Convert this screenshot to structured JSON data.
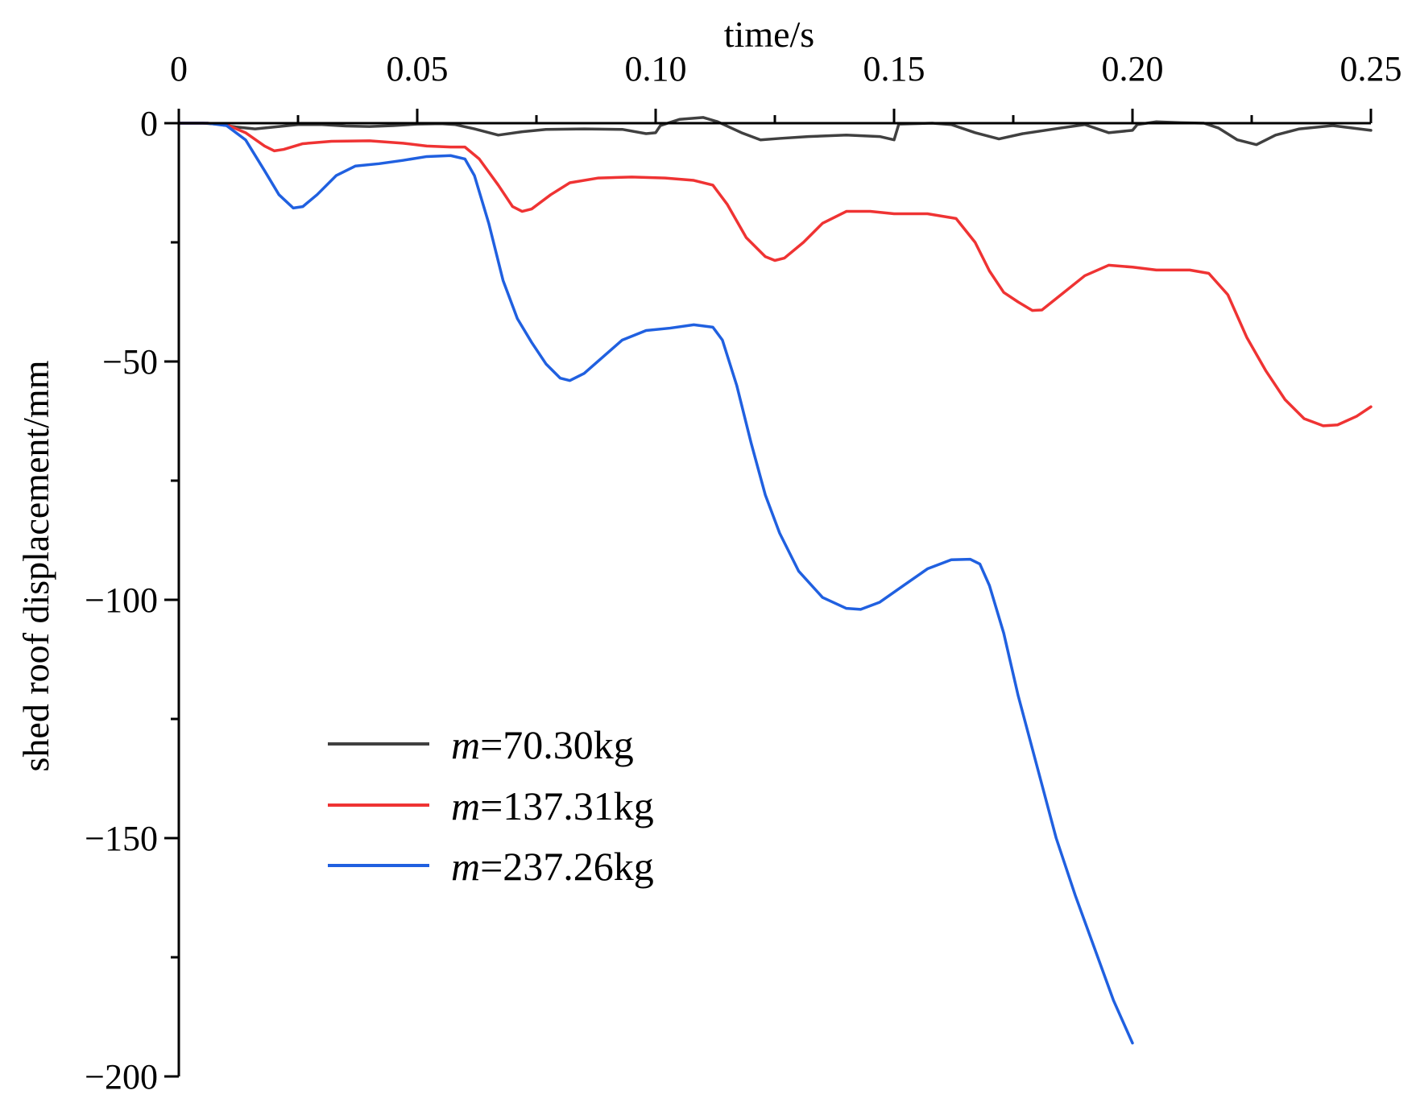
{
  "chart_data": {
    "type": "line",
    "title": "",
    "xlabel": "time/s",
    "ylabel": "shed roof displacement/mm",
    "xlim": [
      0,
      0.25
    ],
    "ylim": [
      -200,
      0
    ],
    "x_axis_position": "top",
    "grid": false,
    "legend_position": "lower-left",
    "x_ticks": [
      {
        "value": 0,
        "label": "0"
      },
      {
        "value": 0.05,
        "label": "0.05"
      },
      {
        "value": 0.1,
        "label": "0.10"
      },
      {
        "value": 0.15,
        "label": "0.15"
      },
      {
        "value": 0.2,
        "label": "0.20"
      },
      {
        "value": 0.25,
        "label": "0.25"
      }
    ],
    "x_minor_ticks": [
      0.025,
      0.075,
      0.125,
      0.175,
      0.225
    ],
    "y_ticks": [
      {
        "value": 0,
        "label": "0"
      },
      {
        "value": -50,
        "label": "−50"
      },
      {
        "value": -100,
        "label": "−100"
      },
      {
        "value": -150,
        "label": "−150"
      },
      {
        "value": -200,
        "label": "−200"
      }
    ],
    "y_minor_ticks": [
      -25,
      -75,
      -125,
      -175
    ],
    "series": [
      {
        "name_var": "m",
        "name_rest": "=70.30kg",
        "color": "#404040",
        "points": [
          [
            0,
            0
          ],
          [
            0.005,
            0
          ],
          [
            0.008,
            -0.2
          ],
          [
            0.012,
            -0.8
          ],
          [
            0.016,
            -1.2
          ],
          [
            0.02,
            -0.8
          ],
          [
            0.025,
            -0.3
          ],
          [
            0.03,
            -0.3
          ],
          [
            0.035,
            -0.6
          ],
          [
            0.04,
            -0.7
          ],
          [
            0.045,
            -0.5
          ],
          [
            0.05,
            -0.2
          ],
          [
            0.055,
            -0.1
          ],
          [
            0.058,
            -0.3
          ],
          [
            0.062,
            -1.2
          ],
          [
            0.067,
            -2.5
          ],
          [
            0.072,
            -1.8
          ],
          [
            0.077,
            -1.3
          ],
          [
            0.085,
            -1.2
          ],
          [
            0.093,
            -1.3
          ],
          [
            0.098,
            -2.2
          ],
          [
            0.1,
            -2.0
          ],
          [
            0.101,
            -0.5
          ],
          [
            0.105,
            0.8
          ],
          [
            0.11,
            1.2
          ],
          [
            0.113,
            0.3
          ],
          [
            0.118,
            -2.0
          ],
          [
            0.122,
            -3.5
          ],
          [
            0.126,
            -3.2
          ],
          [
            0.132,
            -2.8
          ],
          [
            0.14,
            -2.5
          ],
          [
            0.147,
            -2.8
          ],
          [
            0.15,
            -3.5
          ],
          [
            0.151,
            -0.2
          ],
          [
            0.158,
            0
          ],
          [
            0.162,
            -0.3
          ],
          [
            0.167,
            -2.0
          ],
          [
            0.172,
            -3.3
          ],
          [
            0.177,
            -2.2
          ],
          [
            0.185,
            -1.0
          ],
          [
            0.19,
            -0.3
          ],
          [
            0.195,
            -2.0
          ],
          [
            0.2,
            -1.5
          ],
          [
            0.201,
            -0.3
          ],
          [
            0.205,
            0.3
          ],
          [
            0.21,
            0.1
          ],
          [
            0.215,
            0
          ],
          [
            0.218,
            -1.0
          ],
          [
            0.222,
            -3.5
          ],
          [
            0.226,
            -4.5
          ],
          [
            0.23,
            -2.5
          ],
          [
            0.235,
            -1.2
          ],
          [
            0.242,
            -0.5
          ],
          [
            0.25,
            -1.5
          ]
        ]
      },
      {
        "name_var": "m",
        "name_rest": "=137.31kg",
        "color": "#ef3333",
        "points": [
          [
            0,
            0
          ],
          [
            0.006,
            0
          ],
          [
            0.01,
            -0.3
          ],
          [
            0.014,
            -2.0
          ],
          [
            0.018,
            -4.8
          ],
          [
            0.02,
            -5.8
          ],
          [
            0.022,
            -5.5
          ],
          [
            0.026,
            -4.3
          ],
          [
            0.032,
            -3.8
          ],
          [
            0.04,
            -3.7
          ],
          [
            0.047,
            -4.2
          ],
          [
            0.052,
            -4.8
          ],
          [
            0.057,
            -5.0
          ],
          [
            0.06,
            -5.0
          ],
          [
            0.063,
            -7.5
          ],
          [
            0.067,
            -13
          ],
          [
            0.07,
            -17.5
          ],
          [
            0.072,
            -18.5
          ],
          [
            0.074,
            -18
          ],
          [
            0.078,
            -15
          ],
          [
            0.082,
            -12.5
          ],
          [
            0.088,
            -11.5
          ],
          [
            0.095,
            -11.3
          ],
          [
            0.102,
            -11.5
          ],
          [
            0.108,
            -12
          ],
          [
            0.112,
            -13
          ],
          [
            0.115,
            -17
          ],
          [
            0.119,
            -24
          ],
          [
            0.123,
            -28
          ],
          [
            0.125,
            -28.8
          ],
          [
            0.127,
            -28.3
          ],
          [
            0.131,
            -25
          ],
          [
            0.135,
            -21
          ],
          [
            0.14,
            -18.5
          ],
          [
            0.145,
            -18.5
          ],
          [
            0.15,
            -19
          ],
          [
            0.157,
            -19
          ],
          [
            0.163,
            -20
          ],
          [
            0.167,
            -25
          ],
          [
            0.17,
            -31
          ],
          [
            0.173,
            -35.5
          ],
          [
            0.176,
            -37.5
          ],
          [
            0.179,
            -39.3
          ],
          [
            0.181,
            -39.2
          ],
          [
            0.185,
            -36
          ],
          [
            0.19,
            -32
          ],
          [
            0.195,
            -29.8
          ],
          [
            0.2,
            -30.2
          ],
          [
            0.205,
            -30.8
          ],
          [
            0.212,
            -30.8
          ],
          [
            0.216,
            -31.5
          ],
          [
            0.22,
            -36
          ],
          [
            0.224,
            -45
          ],
          [
            0.228,
            -52
          ],
          [
            0.232,
            -58
          ],
          [
            0.236,
            -62
          ],
          [
            0.24,
            -63.5
          ],
          [
            0.243,
            -63.3
          ],
          [
            0.247,
            -61.5
          ],
          [
            0.25,
            -59.5
          ]
        ]
      },
      {
        "name_var": "m",
        "name_rest": "=237.26kg",
        "color": "#2060e0",
        "points": [
          [
            0,
            0
          ],
          [
            0.006,
            0
          ],
          [
            0.01,
            -0.5
          ],
          [
            0.014,
            -3.5
          ],
          [
            0.018,
            -10
          ],
          [
            0.021,
            -15
          ],
          [
            0.024,
            -17.8
          ],
          [
            0.026,
            -17.5
          ],
          [
            0.029,
            -15
          ],
          [
            0.033,
            -11
          ],
          [
            0.037,
            -9
          ],
          [
            0.042,
            -8.5
          ],
          [
            0.047,
            -7.8
          ],
          [
            0.052,
            -7.0
          ],
          [
            0.057,
            -6.8
          ],
          [
            0.06,
            -7.5
          ],
          [
            0.062,
            -11
          ],
          [
            0.065,
            -21
          ],
          [
            0.068,
            -33
          ],
          [
            0.071,
            -41
          ],
          [
            0.074,
            -46
          ],
          [
            0.077,
            -50.5
          ],
          [
            0.08,
            -53.5
          ],
          [
            0.082,
            -54
          ],
          [
            0.085,
            -52.5
          ],
          [
            0.089,
            -49
          ],
          [
            0.093,
            -45.5
          ],
          [
            0.098,
            -43.5
          ],
          [
            0.103,
            -43.0
          ],
          [
            0.108,
            -42.3
          ],
          [
            0.112,
            -42.8
          ],
          [
            0.114,
            -45.5
          ],
          [
            0.117,
            -55
          ],
          [
            0.12,
            -67
          ],
          [
            0.123,
            -78
          ],
          [
            0.126,
            -86
          ],
          [
            0.13,
            -94
          ],
          [
            0.135,
            -99.5
          ],
          [
            0.14,
            -101.8
          ],
          [
            0.143,
            -102
          ],
          [
            0.147,
            -100.5
          ],
          [
            0.152,
            -97
          ],
          [
            0.157,
            -93.5
          ],
          [
            0.162,
            -91.6
          ],
          [
            0.166,
            -91.5
          ],
          [
            0.168,
            -92.5
          ],
          [
            0.17,
            -97
          ],
          [
            0.173,
            -107
          ],
          [
            0.176,
            -120
          ],
          [
            0.18,
            -135
          ],
          [
            0.184,
            -150
          ],
          [
            0.188,
            -162
          ],
          [
            0.192,
            -173
          ],
          [
            0.196,
            -184
          ],
          [
            0.2,
            -193
          ]
        ]
      }
    ]
  }
}
